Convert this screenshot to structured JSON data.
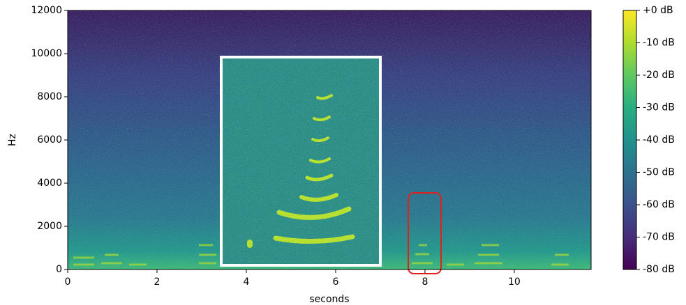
{
  "chart_data": {
    "type": "spectrogram",
    "xlabel": "seconds",
    "ylabel": "Hz",
    "xlim": [
      0,
      11.72
    ],
    "xticks": [
      0,
      2,
      4,
      6,
      8,
      10
    ],
    "ylim": [
      0,
      12000
    ],
    "yticks": [
      0,
      2000,
      4000,
      6000,
      8000,
      10000,
      12000
    ],
    "colorbar": {
      "lim": [
        -80,
        0
      ],
      "ticks": [
        {
          "value": 0,
          "label": "+0 dB"
        },
        {
          "value": -10,
          "label": "-10 dB"
        },
        {
          "value": -20,
          "label": "-20 dB"
        },
        {
          "value": -30,
          "label": "-30 dB"
        },
        {
          "value": -40,
          "label": "-40 dB"
        },
        {
          "value": -50,
          "label": "-50 dB"
        },
        {
          "value": -60,
          "label": "-60 dB"
        },
        {
          "value": -70,
          "label": "-70 dB"
        },
        {
          "value": -80,
          "label": "-80 dB"
        }
      ]
    }
  }
}
